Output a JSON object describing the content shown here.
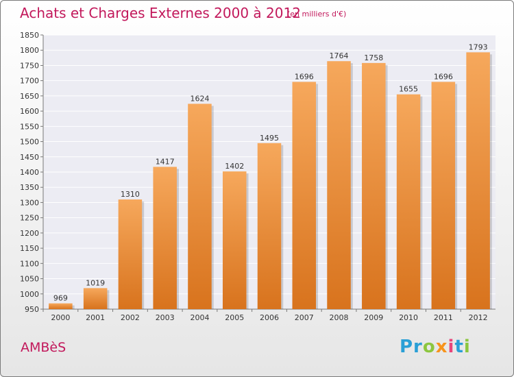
{
  "title": "Achats et Charges Externes 2000 à 2012",
  "subtitle": "(en milliers d'€)",
  "place": "AMBèS",
  "logo": {
    "parts": [
      "Pr",
      "o",
      "x",
      "i",
      "t",
      "i"
    ]
  },
  "colors": {
    "title": "#c2185b",
    "bar_top": "#f6a85c",
    "bar_bottom": "#d8731d"
  },
  "chart_data": {
    "type": "bar",
    "title": "Achats et Charges Externes 2000 à 2012",
    "subtitle": "(en milliers d'€)",
    "categories": [
      "2000",
      "2001",
      "2002",
      "2003",
      "2004",
      "2005",
      "2006",
      "2007",
      "2008",
      "2009",
      "2010",
      "2011",
      "2012"
    ],
    "values": [
      969,
      1019,
      1310,
      1417,
      1624,
      1402,
      1495,
      1696,
      1764,
      1758,
      1655,
      1696,
      1793
    ],
    "ylim": [
      950,
      1850
    ],
    "yticks": [
      950,
      1000,
      1050,
      1100,
      1150,
      1200,
      1250,
      1300,
      1350,
      1400,
      1450,
      1500,
      1550,
      1600,
      1650,
      1700,
      1750,
      1800,
      1850
    ],
    "grid": true
  }
}
